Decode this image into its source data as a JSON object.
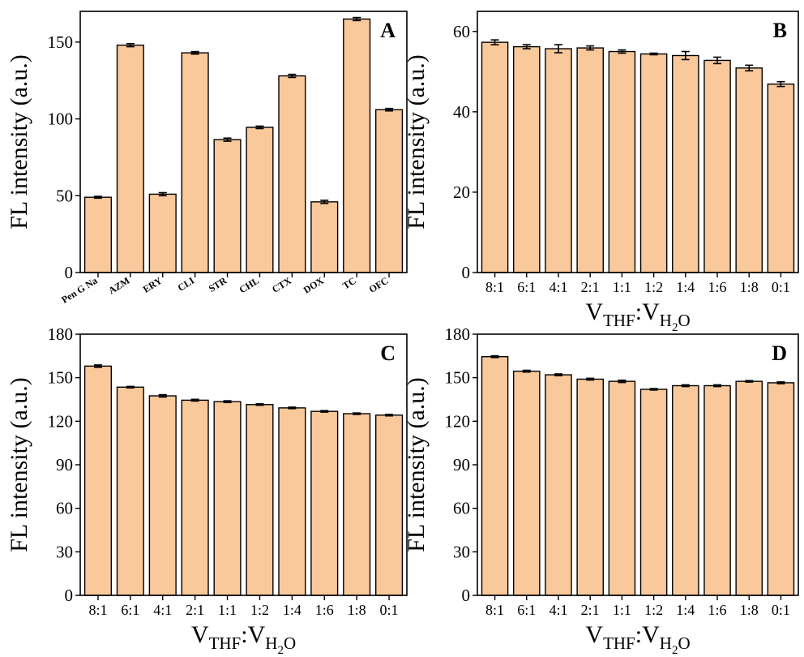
{
  "chart_data": [
    {
      "panel": "A",
      "type": "bar",
      "ylabel": "FL intensity (a.u.)",
      "xlabel": "",
      "categories": [
        "Pen G Na",
        "AZM",
        "ERY",
        "CLI",
        "STR",
        "CHL",
        "CTX",
        "DOX",
        "TC",
        "OFC"
      ],
      "values": [
        49,
        148,
        51,
        143,
        86.5,
        94.5,
        128,
        46,
        165,
        106
      ],
      "errors": [
        0.6,
        1.0,
        1.0,
        0.8,
        1.0,
        0.8,
        1.0,
        1.0,
        1.0,
        0.8
      ],
      "ylim": [
        0,
        170
      ],
      "yticks": [
        "0",
        "50",
        "100",
        "150"
      ],
      "grid": false,
      "bar_color": "#f9c89b"
    },
    {
      "panel": "B",
      "type": "bar",
      "ylabel": "FL intensity (a.u.)",
      "xlabel": "V_THF:V_H2O",
      "categories": [
        "8:1",
        "6:1",
        "4:1",
        "2:1",
        "1:1",
        "1:2",
        "1:4",
        "1:6",
        "1:8",
        "0:1"
      ],
      "values": [
        57.3,
        56.2,
        55.7,
        55.9,
        55.0,
        54.4,
        54.0,
        52.8,
        50.9,
        46.9
      ],
      "errors": [
        0.6,
        0.5,
        1.0,
        0.5,
        0.4,
        0.2,
        1.0,
        0.8,
        0.7,
        0.6
      ],
      "ylim": [
        0,
        65
      ],
      "yticks": [
        "0",
        "20",
        "40",
        "60"
      ],
      "grid": false,
      "bar_color": "#f9c89b"
    },
    {
      "panel": "C",
      "type": "bar",
      "ylabel": "FL intensity (a.u.)",
      "xlabel": "V_THF:V_H2O",
      "categories": [
        "8:1",
        "6:1",
        "4:1",
        "2:1",
        "1:1",
        "1:2",
        "1:4",
        "1:6",
        "1:8",
        "0:1"
      ],
      "values": [
        158,
        143.5,
        137.5,
        134.5,
        133.5,
        131.5,
        129.2,
        126.8,
        125.2,
        124.2
      ],
      "errors": [
        0.8,
        0.5,
        0.8,
        0.6,
        0.6,
        0.5,
        0.5,
        0.5,
        0.5,
        0.5
      ],
      "ylim": [
        0,
        180
      ],
      "yticks": [
        "0",
        "30",
        "60",
        "90",
        "120",
        "150",
        "180"
      ],
      "grid": false,
      "bar_color": "#f9c89b"
    },
    {
      "panel": "D",
      "type": "bar",
      "ylabel": "FL intensity (a.u.)",
      "xlabel": "V_THF:V_H2O",
      "categories": [
        "8:1",
        "6:1",
        "4:1",
        "2:1",
        "1:1",
        "1:2",
        "1:4",
        "1:6",
        "1:8",
        "0:1"
      ],
      "values": [
        164.5,
        154.5,
        152,
        149,
        147.5,
        142,
        144.5,
        144.5,
        147.5,
        146.5
      ],
      "errors": [
        0.6,
        0.6,
        0.6,
        0.6,
        0.8,
        0.5,
        0.6,
        0.6,
        0.5,
        0.6
      ],
      "ylim": [
        0,
        180
      ],
      "yticks": [
        "0",
        "30",
        "60",
        "90",
        "120",
        "150",
        "180"
      ],
      "grid": false,
      "bar_color": "#f9c89b"
    }
  ],
  "xlabel_parts": {
    "v1": "V",
    "sub1": "THF",
    "colon": ":",
    "v2": "V",
    "sub2": "H",
    "sub3": "2",
    "sub4": "O"
  }
}
